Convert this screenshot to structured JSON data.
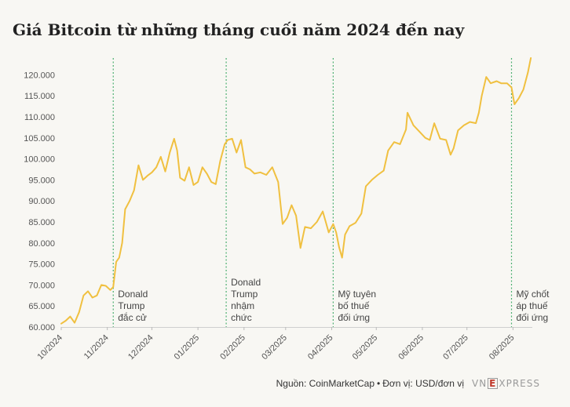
{
  "title": "Giá Bitcoin từ những tháng cuối năm 2024 đến nay",
  "footer": {
    "source": "Nguồn: CoinMarketCap",
    "unit": "Đơn vị: USD/đơn vị",
    "logo": "VNEXPRESS"
  },
  "chart_data": {
    "type": "line",
    "ylim": [
      60000,
      124000
    ],
    "yticks": [
      60000,
      65000,
      70000,
      75000,
      80000,
      85000,
      90000,
      95000,
      100000,
      105000,
      110000,
      115000,
      120000
    ],
    "ytick_labels": [
      "60.000",
      "65.000",
      "70.000",
      "75.000",
      "80.000",
      "85.000",
      "90.000",
      "95.000",
      "100.000",
      "105.000",
      "110.000",
      "115.000",
      "120.000"
    ],
    "xlim": [
      "2024-10-01",
      "2025-08-14"
    ],
    "xticks": [
      "2024-10-01",
      "2024-11-01",
      "2024-12-01",
      "2025-01-01",
      "2025-02-01",
      "2025-03-01",
      "2025-04-01",
      "2025-05-01",
      "2025-06-01",
      "2025-07-01",
      "2025-08-01"
    ],
    "xtick_labels": [
      "10/2024",
      "11/2024",
      "12/2024",
      "01/2025",
      "02/2025",
      "03/2025",
      "04/2025",
      "05/2025",
      "06/2025",
      "07/2025",
      "08/2025"
    ],
    "grid": false,
    "line_color": "#f0c040",
    "annotation_color": "#4caf70",
    "series": [
      {
        "dates": [
          "2024-10-01",
          "2024-10-04",
          "2024-10-07",
          "2024-10-10",
          "2024-10-13",
          "2024-10-16",
          "2024-10-19",
          "2024-10-22",
          "2024-10-25",
          "2024-10-28",
          "2024-10-31",
          "2024-11-03",
          "2024-11-05",
          "2024-11-07",
          "2024-11-09",
          "2024-11-11",
          "2024-11-13",
          "2024-11-16",
          "2024-11-19",
          "2024-11-22",
          "2024-11-25",
          "2024-11-28",
          "2024-12-01",
          "2024-12-04",
          "2024-12-07",
          "2024-12-10",
          "2024-12-13",
          "2024-12-16",
          "2024-12-18",
          "2024-12-20",
          "2024-12-23",
          "2024-12-26",
          "2024-12-29",
          "2025-01-01",
          "2025-01-04",
          "2025-01-07",
          "2025-01-10",
          "2025-01-13",
          "2025-01-16",
          "2025-01-19",
          "2025-01-21",
          "2025-01-24",
          "2025-01-27",
          "2025-01-30",
          "2025-02-02",
          "2025-02-05",
          "2025-02-08",
          "2025-02-12",
          "2025-02-16",
          "2025-02-20",
          "2025-02-24",
          "2025-02-27",
          "2025-03-02",
          "2025-03-05",
          "2025-03-08",
          "2025-03-11",
          "2025-03-14",
          "2025-03-18",
          "2025-03-22",
          "2025-03-26",
          "2025-03-30",
          "2025-04-02",
          "2025-04-04",
          "2025-04-06",
          "2025-04-08",
          "2025-04-10",
          "2025-04-13",
          "2025-04-17",
          "2025-04-21",
          "2025-04-24",
          "2025-04-28",
          "2025-05-02",
          "2025-05-06",
          "2025-05-09",
          "2025-05-13",
          "2025-05-17",
          "2025-05-21",
          "2025-05-22",
          "2025-05-26",
          "2025-05-30",
          "2025-06-03",
          "2025-06-06",
          "2025-06-09",
          "2025-06-13",
          "2025-06-17",
          "2025-06-20",
          "2025-06-22",
          "2025-06-25",
          "2025-06-29",
          "2025-07-03",
          "2025-07-07",
          "2025-07-09",
          "2025-07-11",
          "2025-07-14",
          "2025-07-17",
          "2025-07-21",
          "2025-07-24",
          "2025-07-28",
          "2025-07-31",
          "2025-08-02",
          "2025-08-05",
          "2025-08-08",
          "2025-08-11",
          "2025-08-13"
        ],
        "values": [
          60800,
          61500,
          62500,
          61000,
          63500,
          67500,
          68500,
          67000,
          67500,
          70000,
          69800,
          68800,
          69500,
          75500,
          76500,
          80000,
          88000,
          90000,
          92500,
          98500,
          95000,
          96000,
          96800,
          98000,
          100500,
          97000,
          101500,
          104800,
          102000,
          95500,
          94800,
          98000,
          93800,
          94500,
          98000,
          96500,
          94500,
          94000,
          99500,
          103500,
          104500,
          104800,
          101500,
          104500,
          98000,
          97500,
          96500,
          96800,
          96200,
          98000,
          94500,
          84500,
          86000,
          89000,
          86500,
          78800,
          83800,
          83500,
          85000,
          87500,
          82500,
          84500,
          82500,
          79000,
          76500,
          82000,
          84000,
          84800,
          87000,
          93500,
          95000,
          96200,
          97200,
          102000,
          104000,
          103500,
          107000,
          111000,
          108000,
          106500,
          105000,
          104500,
          108500,
          104800,
          104500,
          101000,
          102500,
          106800,
          108000,
          108800,
          108500,
          111000,
          115000,
          119500,
          118000,
          118500,
          118000,
          118000,
          117000,
          113000,
          114500,
          116500,
          120500,
          124000
        ]
      }
    ],
    "annotations": [
      {
        "date": "2024-11-05",
        "label": [
          "Donald",
          "Trump",
          "đắc cử"
        ]
      },
      {
        "date": "2025-01-20",
        "label": [
          "Donald",
          "Trump",
          "nhậm",
          "chức"
        ]
      },
      {
        "date": "2025-04-02",
        "label": [
          "Mỹ tuyên",
          "bố thuế",
          "đối ứng"
        ]
      },
      {
        "date": "2025-07-31",
        "label": [
          "Mỹ chốt",
          "áp thuế",
          "đối ứng"
        ]
      }
    ]
  }
}
